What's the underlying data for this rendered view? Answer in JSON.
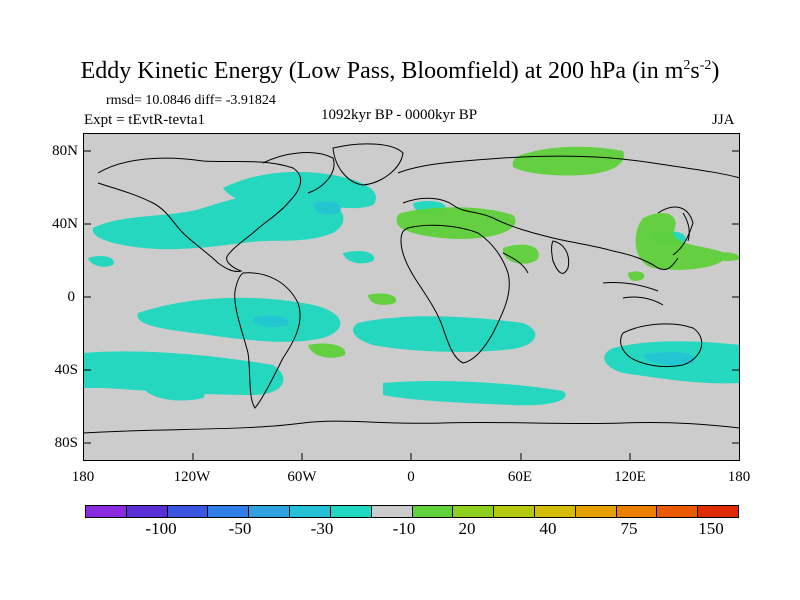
{
  "title": {
    "main": "Eddy Kinetic Energy (Low Pass, Bloomfield) at 200 hPa (in m",
    "sup1": "2",
    "mid": "s",
    "sup2": "-2",
    "end": ")"
  },
  "stats": "rmsd= 10.0846 diff= -3.91824",
  "expt": "Expt = tEvtR-tevta1",
  "period": "1092kyr BP - 0000kyr BP",
  "season": "JJA",
  "yaxis": [
    "80N",
    "40N",
    "0",
    "40S",
    "80S"
  ],
  "xaxis": [
    "180",
    "120W",
    "60W",
    "0",
    "60E",
    "120E",
    "180"
  ],
  "colorbar": {
    "colors": [
      "#8a2be2",
      "#5a2fd8",
      "#3a56e0",
      "#2f7ee8",
      "#2ea3e0",
      "#23c0d6",
      "#1ed8c0",
      "#cccccc",
      "#5fd13a",
      "#8fcf1e",
      "#b5c90f",
      "#d6bd05",
      "#e6a000",
      "#ec7f00",
      "#ea5a00",
      "#e02a00"
    ],
    "labels": [
      "-100",
      "-50",
      "-30",
      "-10",
      "20",
      "40",
      "75",
      "150"
    ]
  },
  "colors": {
    "cyan": "#1ed8c0",
    "teal": "#23c0d6",
    "green": "#5fd13a",
    "land_bg": "#cccccc"
  }
}
